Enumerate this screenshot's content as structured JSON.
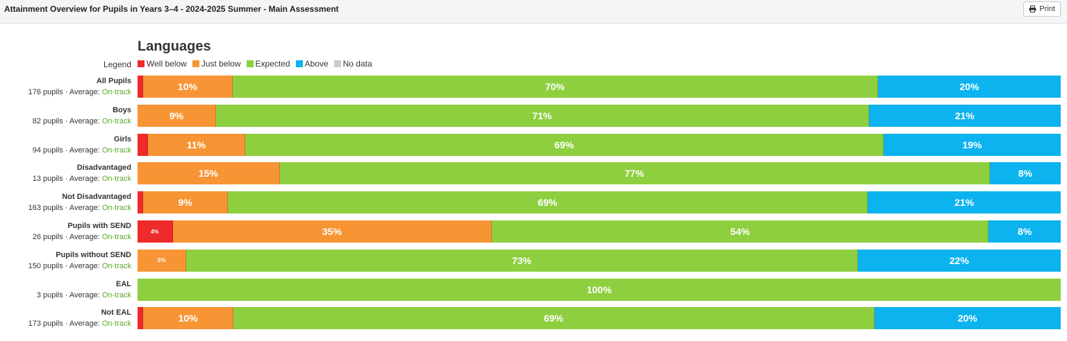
{
  "header": {
    "title": "Attainment Overview for Pupils in Years 3–4 - 2024-2025 Summer - Main Assessment",
    "print_label": "Print",
    "print_icon": "printer-icon"
  },
  "section": {
    "title": "Languages"
  },
  "legend": {
    "label": "Legend",
    "items": [
      {
        "label": "Well below",
        "color": "#ee2a2a"
      },
      {
        "label": "Just below",
        "color": "#f79535"
      },
      {
        "label": "Expected",
        "color": "#8ecf3f"
      },
      {
        "label": "Above",
        "color": "#0cb3ee"
      },
      {
        "label": "No data",
        "color": "#cccccc"
      }
    ]
  },
  "chart_data": {
    "type": "bar",
    "orientation": "horizontal-stacked-100",
    "categories": [
      "Well below",
      "Just below",
      "Expected",
      "Above",
      "No data"
    ],
    "colors": [
      "#ee2a2a",
      "#f79535",
      "#8ecf3f",
      "#0cb3ee",
      "#cccccc"
    ],
    "rows": [
      {
        "name": "All Pupils",
        "pupils_text": "176 pupils",
        "average_label": "Average:",
        "average": "On-track",
        "values": [
          0.6,
          9.7,
          69.9,
          19.8,
          0
        ],
        "labels": [
          "",
          "10%",
          "70%",
          "20%",
          ""
        ]
      },
      {
        "name": "Boys",
        "pupils_text": "82 pupils",
        "average_label": "Average:",
        "average": "On-track",
        "values": [
          0,
          8.5,
          70.7,
          20.8,
          0
        ],
        "labels": [
          "",
          "9%",
          "71%",
          "21%",
          ""
        ]
      },
      {
        "name": "Girls",
        "pupils_text": "94 pupils",
        "average_label": "Average:",
        "average": "On-track",
        "values": [
          1.1,
          10.6,
          69.1,
          19.2,
          0
        ],
        "labels": [
          "",
          "11%",
          "69%",
          "19%",
          ""
        ]
      },
      {
        "name": "Disadvantaged",
        "pupils_text": "13 pupils",
        "average_label": "Average:",
        "average": "On-track",
        "values": [
          0,
          15.4,
          76.9,
          7.7,
          0
        ],
        "labels": [
          "",
          "15%",
          "77%",
          "8%",
          ""
        ]
      },
      {
        "name": "Not Disadvantaged",
        "pupils_text": "163 pupils",
        "average_label": "Average:",
        "average": "On-track",
        "values": [
          0.6,
          9.2,
          69.3,
          20.9,
          0
        ],
        "labels": [
          "",
          "9%",
          "69%",
          "21%",
          ""
        ]
      },
      {
        "name": "Pupils with SEND",
        "pupils_text": "26 pupils",
        "average_label": "Average:",
        "average": "On-track",
        "values": [
          3.8,
          34.6,
          53.8,
          7.8,
          0
        ],
        "labels": [
          "4%",
          "35%",
          "54%",
          "8%",
          ""
        ]
      },
      {
        "name": "Pupils without SEND",
        "pupils_text": "150 pupils",
        "average_label": "Average:",
        "average": "On-track",
        "values": [
          0,
          5.3,
          72.7,
          22.0,
          0
        ],
        "labels": [
          "",
          "5%",
          "73%",
          "22%",
          ""
        ]
      },
      {
        "name": "EAL",
        "pupils_text": "3 pupils",
        "average_label": "Average:",
        "average": "On-track",
        "values": [
          0,
          0,
          100,
          0,
          0
        ],
        "labels": [
          "",
          "",
          "100%",
          "",
          ""
        ]
      },
      {
        "name": "Not EAL",
        "pupils_text": "173 pupils",
        "average_label": "Average:",
        "average": "On-track",
        "values": [
          0.6,
          9.8,
          69.4,
          20.2,
          0
        ],
        "labels": [
          "",
          "10%",
          "69%",
          "20%",
          ""
        ]
      }
    ]
  }
}
